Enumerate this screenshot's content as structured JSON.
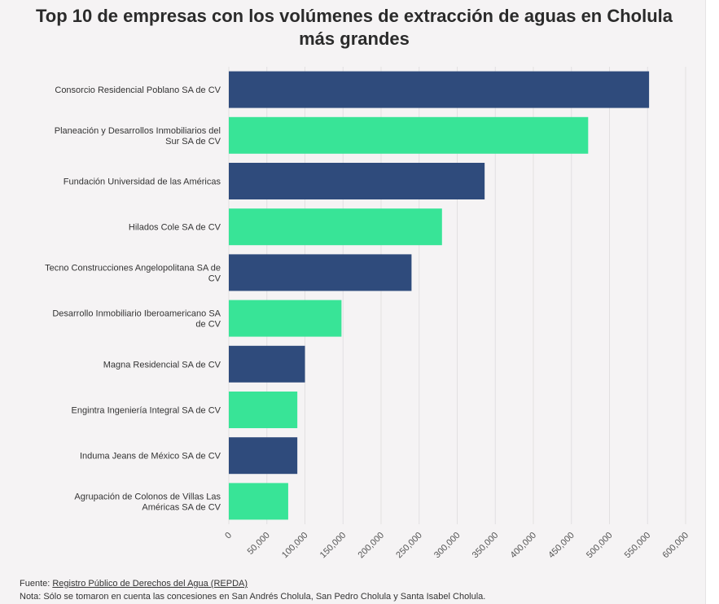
{
  "colors": {
    "bar_dark": "#2f4b7c",
    "bar_green": "#38e497",
    "grid": "#e2e0e1",
    "background": "#f5f3f4"
  },
  "chart_data": {
    "type": "bar",
    "orientation": "horizontal",
    "title": "Top 10 de empresas con los volúmenes de extracción de aguas en Cholula más grandes",
    "categories": [
      "Consorcio Residencial Poblano SA de CV",
      "Planeación y Desarrollos Inmobiliarios del Sur SA de CV",
      "Fundación Universidad de las Américas",
      "Hilados Cole SA de CV",
      "Tecno Construcciones Angelopolitana SA de CV",
      "Desarrollo Inmobiliario Iberoamericano SA de CV",
      "Magna Residencial SA de CV",
      "Engintra Ingeniería Integral SA de CV",
      "Induma Jeans de México SA de CV",
      "Agrupación de Colonos de Villas Las Américas SA de CV"
    ],
    "values": [
      552000,
      472000,
      336000,
      280000,
      240000,
      148000,
      100000,
      90000,
      90000,
      78000
    ],
    "xlim": [
      0,
      600000
    ],
    "ticks": [
      "0",
      "50,000",
      "100,000",
      "150,000",
      "200,000",
      "250,000",
      "300,000",
      "350,000",
      "400,000",
      "450,000",
      "500,000",
      "550,000",
      "600,000"
    ],
    "grid": "vertical",
    "bar_colors": [
      "#2f4b7c",
      "#38e497",
      "#2f4b7c",
      "#38e497",
      "#2f4b7c",
      "#38e497",
      "#2f4b7c",
      "#38e497",
      "#2f4b7c",
      "#38e497"
    ]
  },
  "footer": {
    "source_prefix": "Fuente: ",
    "source_link": "Registro Público de Derechos del Agua (REPDA)",
    "note": "Nota: Sólo se tomaron en cuenta las concesiones en San Andrés Cholula, San Pedro Cholula y Santa Isabel Cholula."
  }
}
